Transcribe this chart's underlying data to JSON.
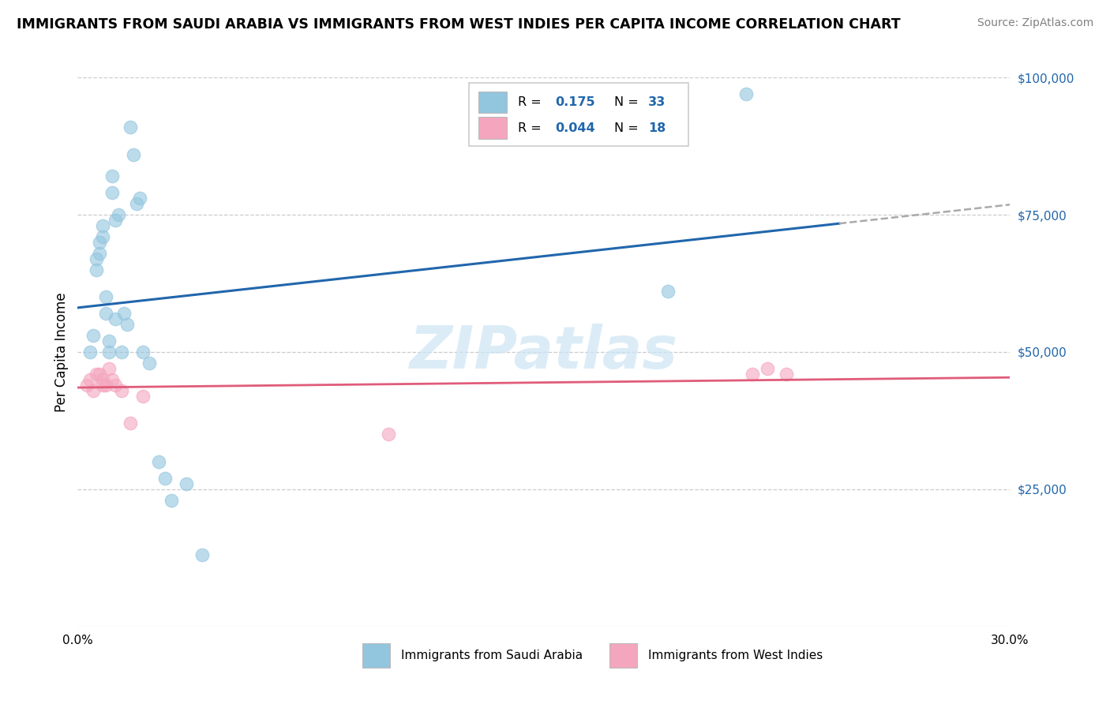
{
  "title": "IMMIGRANTS FROM SAUDI ARABIA VS IMMIGRANTS FROM WEST INDIES PER CAPITA INCOME CORRELATION CHART",
  "source": "Source: ZipAtlas.com",
  "ylabel": "Per Capita Income",
  "xlim": [
    0.0,
    0.3
  ],
  "ylim": [
    0,
    100000
  ],
  "ytick_vals": [
    0,
    25000,
    50000,
    75000,
    100000
  ],
  "ytick_labels": [
    "",
    "$25,000",
    "$50,000",
    "$75,000",
    "$100,000"
  ],
  "xtick_vals": [
    0.0,
    0.05,
    0.1,
    0.15,
    0.2,
    0.25,
    0.3
  ],
  "xtick_labels": [
    "0.0%",
    "",
    "",
    "",
    "",
    "",
    "30.0%"
  ],
  "watermark": "ZIPatlas",
  "r1": "0.175",
  "n1": "33",
  "r2": "0.044",
  "n2": "18",
  "label1": "Immigrants from Saudi Arabia",
  "label2": "Immigrants from West Indies",
  "color1": "#92c5de",
  "color2": "#f4a6be",
  "trend1_color": "#2166ac",
  "trend2_color": "#e05c7a",
  "saudi_x": [
    0.004,
    0.005,
    0.006,
    0.006,
    0.007,
    0.007,
    0.008,
    0.008,
    0.009,
    0.009,
    0.01,
    0.01,
    0.011,
    0.011,
    0.012,
    0.012,
    0.013,
    0.014,
    0.015,
    0.016,
    0.017,
    0.018,
    0.019,
    0.02,
    0.021,
    0.023,
    0.026,
    0.028,
    0.03,
    0.035,
    0.04,
    0.19,
    0.215
  ],
  "saudi_y": [
    50000,
    53000,
    67000,
    65000,
    70000,
    68000,
    73000,
    71000,
    60000,
    57000,
    52000,
    50000,
    82000,
    79000,
    56000,
    74000,
    75000,
    50000,
    57000,
    55000,
    91000,
    86000,
    77000,
    78000,
    50000,
    48000,
    30000,
    27000,
    23000,
    26000,
    13000,
    61000,
    97000
  ],
  "wi_x": [
    0.003,
    0.004,
    0.005,
    0.006,
    0.007,
    0.008,
    0.008,
    0.009,
    0.01,
    0.011,
    0.012,
    0.014,
    0.017,
    0.021,
    0.1,
    0.217,
    0.222,
    0.228
  ],
  "wi_y": [
    44000,
    45000,
    43000,
    46000,
    46000,
    45000,
    44000,
    44000,
    47000,
    45000,
    44000,
    43000,
    37000,
    42000,
    35000,
    46000,
    47000,
    46000
  ]
}
